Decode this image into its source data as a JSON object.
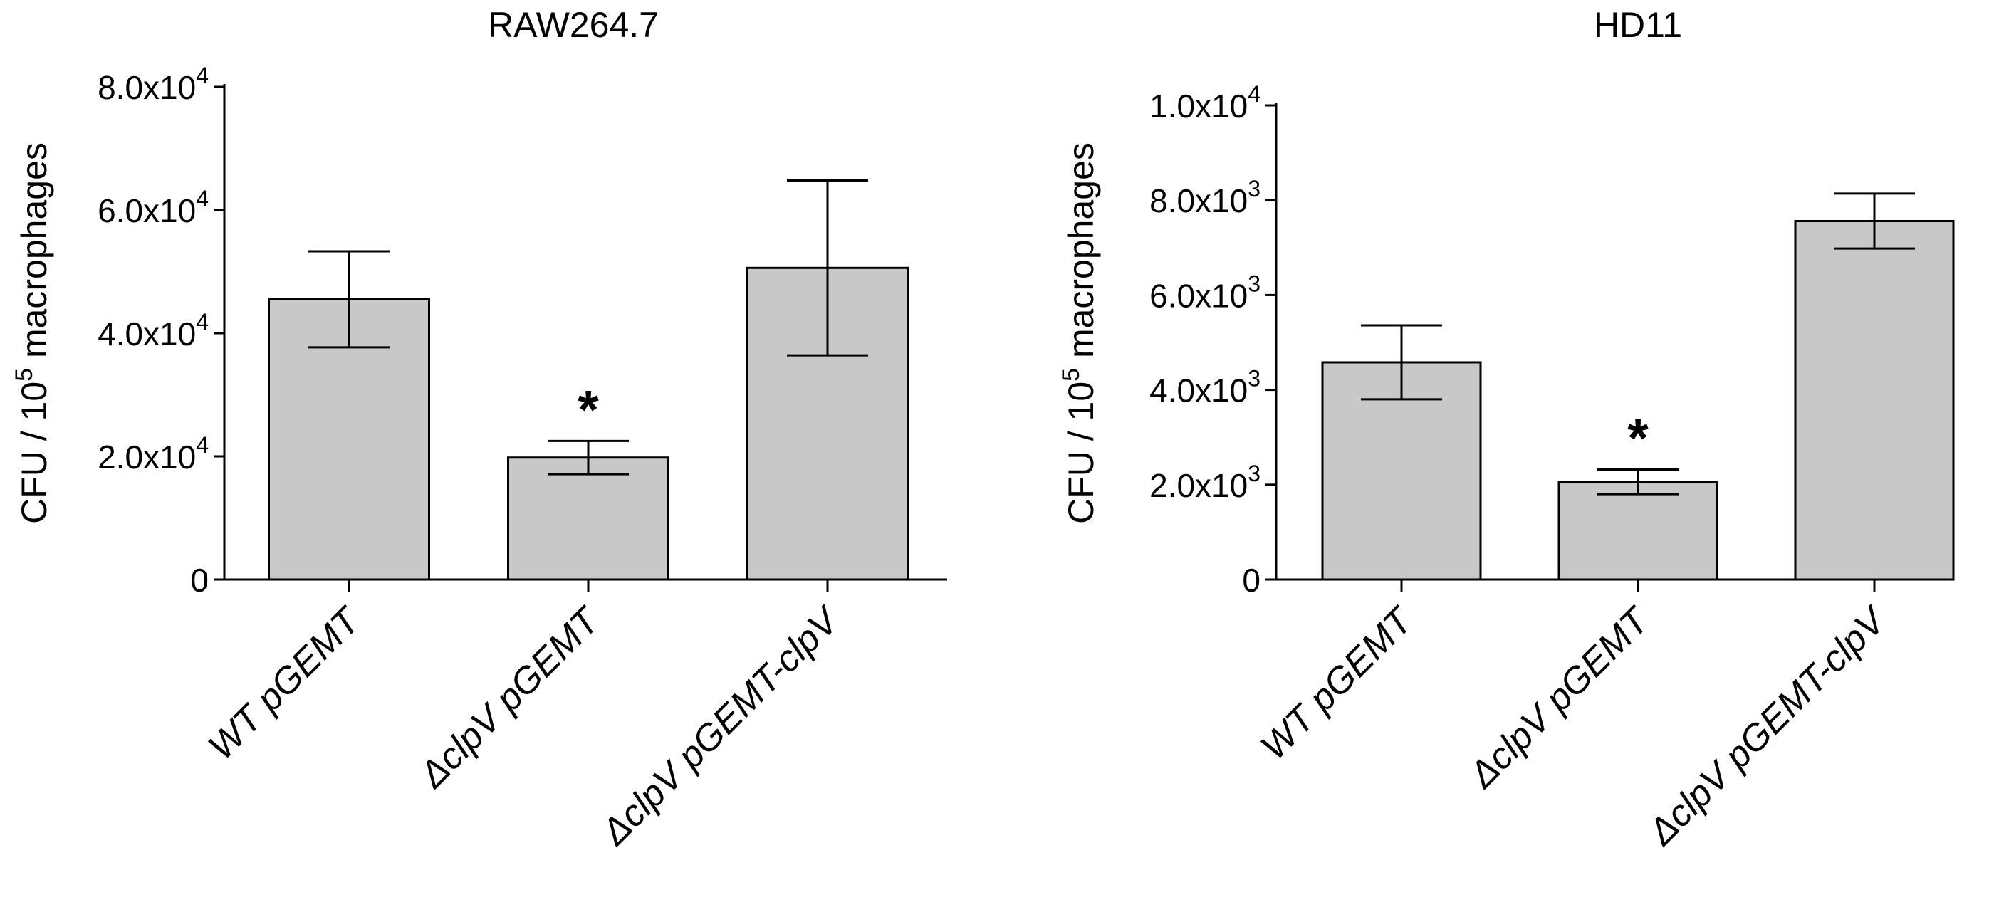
{
  "chart_data": [
    {
      "type": "bar",
      "title": "RAW264.7",
      "ylabel": {
        "main": "CFU / 10",
        "sup": "5",
        "rest": " macrophages"
      },
      "categories": [
        {
          "prefix": "",
          "text": "WT pGEMT"
        },
        {
          "prefix": "Δ",
          "text": "clpV pGEMT"
        },
        {
          "prefix": "Δ",
          "text": "clpV pGEMT-clpV"
        }
      ],
      "values": [
        45500,
        19800,
        50600
      ],
      "errors": [
        7800,
        2700,
        14200
      ],
      "significance": [
        "",
        "*",
        ""
      ],
      "ylim": [
        0,
        80000
      ],
      "yticks": [
        {
          "value": 0,
          "base": "0",
          "exp": ""
        },
        {
          "value": 20000,
          "base": "2.0x10",
          "exp": "4"
        },
        {
          "value": 40000,
          "base": "4.0x10",
          "exp": "4"
        },
        {
          "value": 60000,
          "base": "6.0x10",
          "exp": "4"
        },
        {
          "value": 80000,
          "base": "8.0x10",
          "exp": "4"
        }
      ],
      "bar_color": "#c8c8c8"
    },
    {
      "type": "bar",
      "title": "HD11",
      "ylabel": {
        "main": "CFU / 10",
        "sup": "5",
        "rest": " macrophages"
      },
      "categories": [
        {
          "prefix": "",
          "text": "WT pGEMT"
        },
        {
          "prefix": "Δ",
          "text": "clpV pGEMT"
        },
        {
          "prefix": "Δ",
          "text": "clpV pGEMT-clpV"
        }
      ],
      "values": [
        4580,
        2060,
        7560
      ],
      "errors": [
        780,
        260,
        580
      ],
      "significance": [
        "",
        "*",
        ""
      ],
      "ylim": [
        0,
        10000
      ],
      "yticks": [
        {
          "value": 0,
          "base": "0",
          "exp": ""
        },
        {
          "value": 2000,
          "base": "2.0x10",
          "exp": "3"
        },
        {
          "value": 4000,
          "base": "4.0x10",
          "exp": "3"
        },
        {
          "value": 6000,
          "base": "6.0x10",
          "exp": "3"
        },
        {
          "value": 8000,
          "base": "8.0x10",
          "exp": "3"
        },
        {
          "value": 10000,
          "base": "1.0x10",
          "exp": "4"
        }
      ],
      "bar_color": "#c8c8c8"
    }
  ]
}
